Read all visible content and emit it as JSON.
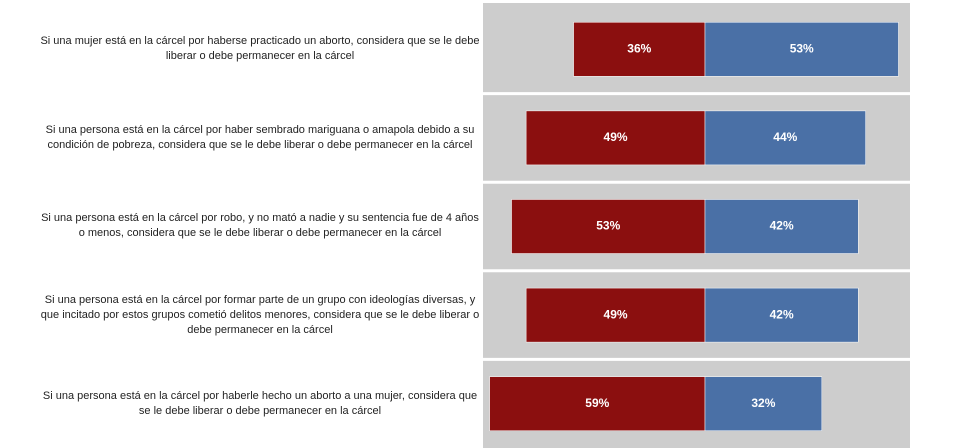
{
  "chart_data": {
    "type": "bar",
    "categories": [
      "Si una mujer está en la cárcel por haberse practicado un aborto, considera que se le debe liberar o debe permanecer en la cárcel",
      "Si una persona está en la cárcel por haber sembrado mariguana o amapola debido a su condición de pobreza, considera que se le debe liberar o debe permanecer en la cárcel",
      "Si una persona está en la cárcel por robo, y no mató a nadie y su sentencia fue de 4 años o menos, considera que se le debe liberar o debe permanecer en la cárcel",
      "Si una persona está en la cárcel por formar parte de un grupo con ideologías diversas, y que incitado por estos grupos cometió delitos menores, considera que se le debe liberar o debe permanecer en la cárcel",
      "Si una persona está en la cárcel por haberle hecho un aborto a una mujer, considera que se le debe liberar o debe permanecer en la cárcel"
    ],
    "series": [
      {
        "color": "#8b0f0f",
        "values": [
          36,
          49,
          53,
          49,
          59
        ],
        "value_labels": [
          "36%",
          "49%",
          "53%",
          "49%",
          "59%"
        ]
      },
      {
        "color": "#4a70a6",
        "values": [
          53,
          44,
          42,
          42,
          32
        ],
        "value_labels": [
          "53%",
          "44%",
          "42%",
          "42%",
          "32%"
        ]
      }
    ]
  }
}
